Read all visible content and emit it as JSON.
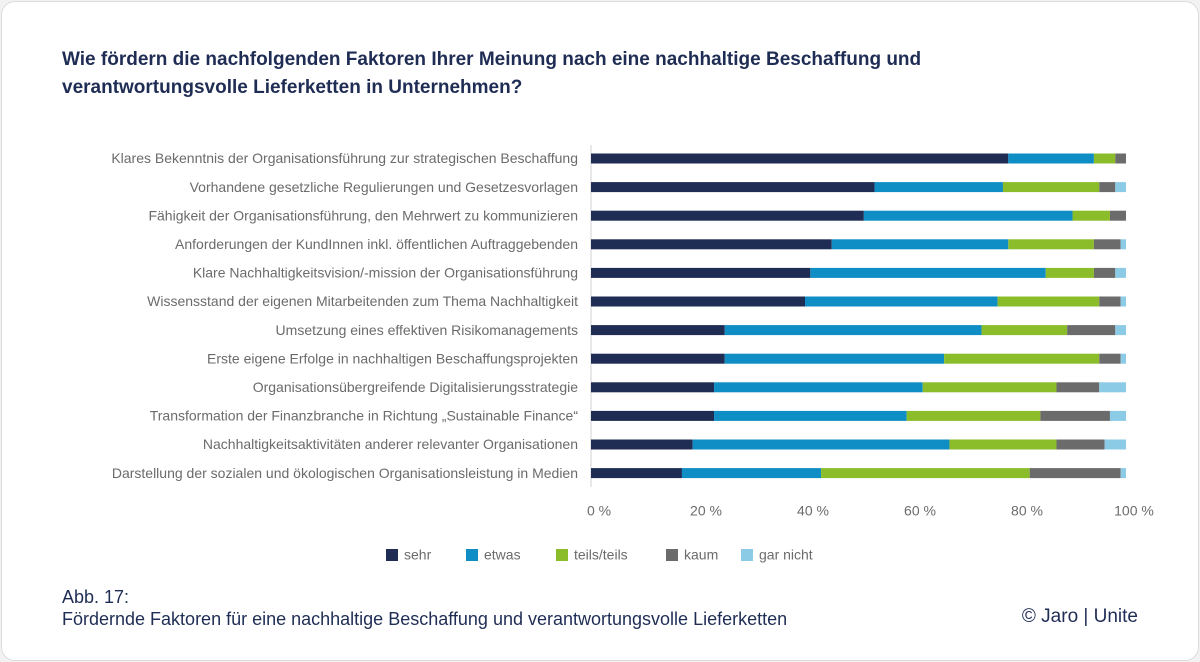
{
  "chart_data": {
    "type": "stacked-bar-horizontal",
    "title": "Wie fördern die nachfolgenden Faktoren Ihrer Meinung nach eine nachhaltige Beschaffung und verantwortungsvolle Lieferketten in Unternehmen?",
    "categories": [
      "Klares Bekenntnis der Organisationsführung zur strategischen Beschaffung",
      "Vorhandene gesetzliche Regulierungen und Gesetzesvorlagen",
      "Fähigkeit der Organisationsführung, den Mehrwert zu kommunizieren",
      "Anforderungen der KundInnen inkl. öffentlichen Auftraggebenden",
      "Klare Nachhaltigkeitsvision/-mission der Organisationsführung",
      "Wissensstand der eigenen Mitarbeitenden zum Thema Nachhaltigkeit",
      "Umsetzung eines effektiven Risikomanagements",
      "Erste eigene Erfolge in nachhaltigen Beschaffungsprojekten",
      "Organisationsübergreifende Digitalisierungsstrategie",
      "Transformation der Finanzbranche in Richtung „Sustainable Finance“",
      "Nachhaltigkeitsaktivitäten anderer relevanter Organisationen",
      "Darstellung der sozialen und ökologischen Organisationsleistung in Medien"
    ],
    "series": [
      {
        "name": "sehr",
        "color": "#1f2d55",
        "values": [
          78,
          53,
          51,
          45,
          41,
          40,
          25,
          25,
          23,
          23,
          19,
          17
        ]
      },
      {
        "name": "etwas",
        "color": "#0f8dc5",
        "values": [
          16,
          24,
          39,
          33,
          44,
          36,
          48,
          41,
          39,
          36,
          48,
          26
        ]
      },
      {
        "name": "teils/teils",
        "color": "#8bbd2a",
        "values": [
          4,
          18,
          7,
          16,
          9,
          19,
          16,
          29,
          25,
          25,
          20,
          39
        ]
      },
      {
        "name": "kaum",
        "color": "#6b6b6b",
        "values": [
          2,
          3,
          3,
          5,
          4,
          4,
          9,
          4,
          8,
          13,
          9,
          17
        ]
      },
      {
        "name": "gar nicht",
        "color": "#8ccbe6",
        "values": [
          0,
          2,
          0,
          1,
          2,
          1,
          2,
          1,
          5,
          3,
          4,
          1
        ]
      }
    ],
    "xlim": [
      0,
      100
    ],
    "xticks": [
      {
        "value": 0,
        "label": "0 %"
      },
      {
        "value": 20,
        "label": "20 %"
      },
      {
        "value": 40,
        "label": "40 %"
      },
      {
        "value": 60,
        "label": "60 %"
      },
      {
        "value": 80,
        "label": "80 %"
      },
      {
        "value": 100,
        "label": "100 %"
      }
    ],
    "legend": "bottom"
  },
  "footer": {
    "figure": "Abb. 17:",
    "caption": "Fördernde Faktoren für eine nachhaltige Beschaffung und verantwortungsvolle Lieferketten",
    "credit": "© Jaro | Unite"
  }
}
